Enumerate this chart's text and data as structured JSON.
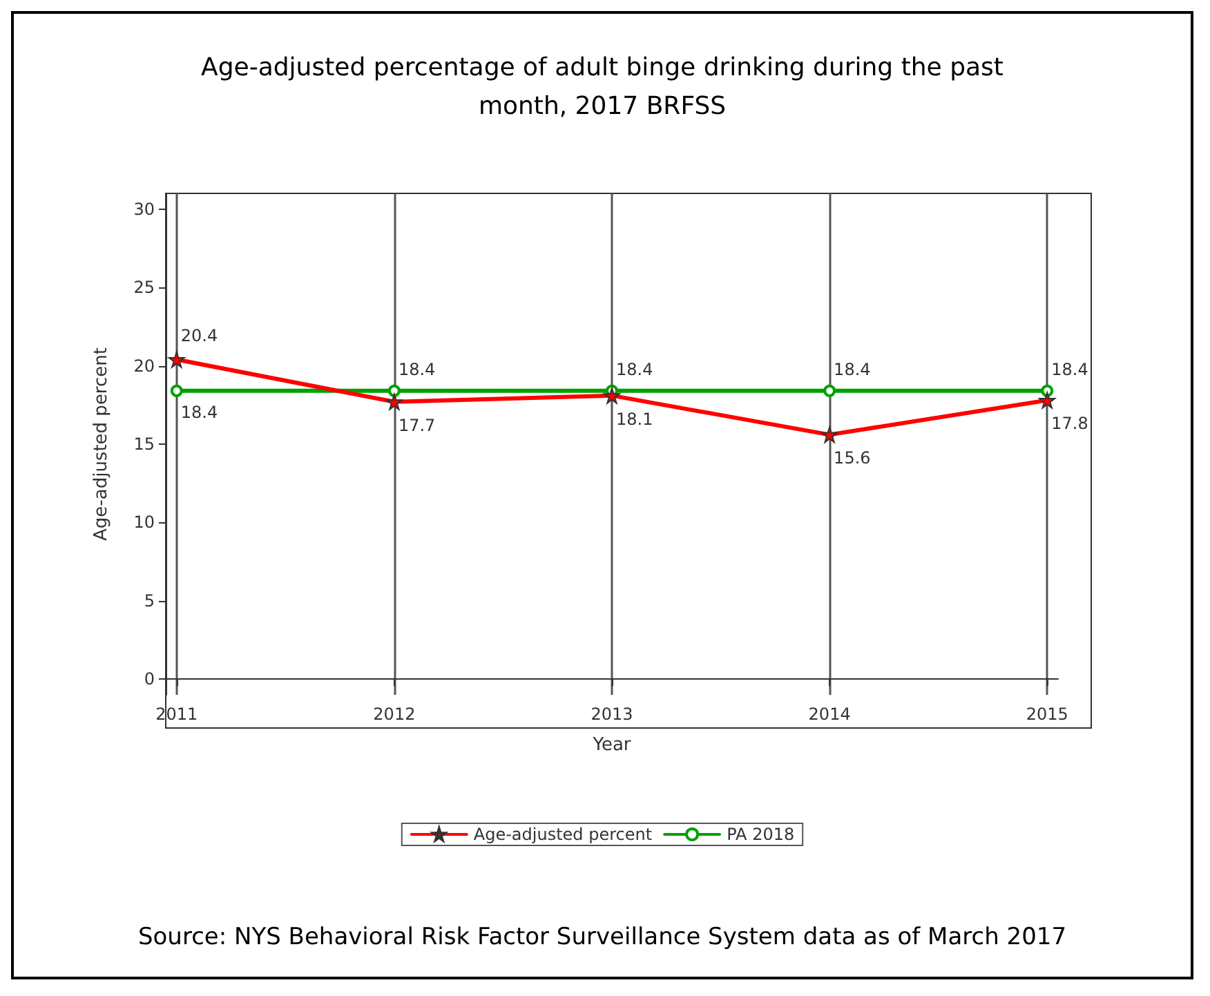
{
  "chart_data": {
    "type": "line",
    "title": "Age-adjusted percentage of adult binge drinking during the past\nmonth, 2017 BRFSS",
    "xlabel": "Year",
    "ylabel": "Age-adjusted percent",
    "x": [
      2011,
      2012,
      2013,
      2014,
      2015
    ],
    "series": [
      {
        "name": "Age-adjusted percent",
        "color": "#ff0000",
        "marker": "star",
        "values": [
          20.4,
          17.7,
          18.1,
          15.6,
          17.8
        ]
      },
      {
        "name": "PA 2018",
        "color": "#00a000",
        "marker": "circle",
        "values": [
          18.4,
          18.4,
          18.4,
          18.4,
          18.4
        ]
      }
    ],
    "xlim": [
      2010.95,
      2015.05
    ],
    "xticks": [
      2011,
      2012,
      2013,
      2014,
      2015
    ],
    "ylim": [
      -1,
      31
    ],
    "yticks": [
      0,
      5,
      10,
      15,
      20,
      25,
      30
    ],
    "grid": "x",
    "legend": "bottom",
    "data_labels": true,
    "line_style": "solid",
    "annotations": [
      "Source: NYS Behavioral Risk Factor Surveillance System data as of March 2017"
    ]
  }
}
